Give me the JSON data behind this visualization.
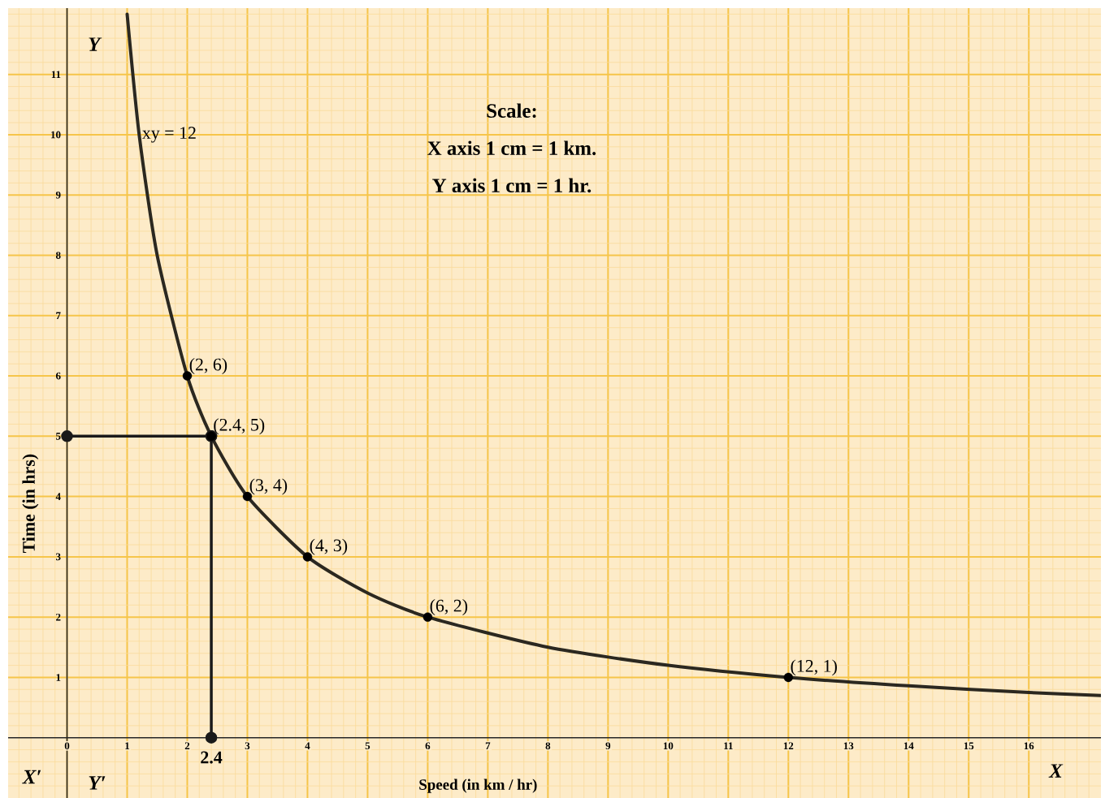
{
  "chart_data": {
    "type": "line",
    "xlabel": "Speed (in km / hr)",
    "ylabel": "Time (in hrs)",
    "xlim": [
      -0.98,
      17.2
    ],
    "ylim": [
      -1.0,
      12.1
    ],
    "xticks": [
      0,
      1,
      2,
      3,
      4,
      5,
      6,
      7,
      8,
      9,
      10,
      11,
      12,
      13,
      14,
      15,
      16,
      {
        "value": -0.8,
        "label": null
      },
      {
        "value": -0.6,
        "label": null
      },
      {
        "value": -0.4,
        "label": null
      },
      {
        "value": -0.2,
        "label": null
      },
      {
        "value": 0.2,
        "label": null
      },
      {
        "value": 0.4,
        "label": null
      },
      {
        "value": 0.6,
        "label": null
      },
      {
        "value": 0.8,
        "label": null
      },
      {
        "value": 1.2,
        "label": null
      },
      {
        "value": 1.4,
        "label": null
      },
      {
        "value": 1.6,
        "label": null
      },
      {
        "value": 1.8,
        "label": null
      },
      {
        "value": 2.2,
        "label": null
      },
      {
        "value": 2.4,
        "label": null
      },
      {
        "value": 2.6,
        "label": null
      },
      {
        "value": 2.8,
        "label": null
      },
      {
        "value": 3.2,
        "label": null
      },
      {
        "value": 3.4,
        "label": null
      },
      {
        "value": 3.6,
        "label": null
      },
      {
        "value": 3.8,
        "label": null
      },
      {
        "value": 4.2,
        "label": null
      },
      {
        "value": 4.4,
        "label": null
      },
      {
        "value": 4.6,
        "label": null
      },
      {
        "value": 4.8,
        "label": null
      },
      {
        "value": 5.2,
        "label": null
      },
      {
        "value": 5.4,
        "label": null
      },
      {
        "value": 5.6,
        "label": null
      },
      {
        "value": 5.8,
        "label": null
      },
      {
        "value": 6.2,
        "label": null
      },
      {
        "value": 6.4,
        "label": null
      },
      {
        "value": 6.6,
        "label": null
      },
      {
        "value": 6.8,
        "label": null
      },
      {
        "value": 7.2,
        "label": null
      },
      {
        "value": 7.4,
        "label": null
      },
      {
        "value": 7.6,
        "label": null
      },
      {
        "value": 7.8,
        "label": null
      },
      {
        "value": 8.2,
        "label": null
      },
      {
        "value": 8.4,
        "label": null
      },
      {
        "value": 8.6,
        "label": null
      },
      {
        "value": 8.8,
        "label": null
      },
      {
        "value": 9.2,
        "label": null
      },
      {
        "value": 9.4,
        "label": null
      },
      {
        "value": 9.6,
        "label": null
      },
      {
        "value": 9.8,
        "label": null
      },
      {
        "value": 10.2,
        "label": null
      },
      {
        "value": 10.4,
        "label": null
      },
      {
        "value": 10.6,
        "label": null
      },
      {
        "value": 10.8,
        "label": null
      },
      {
        "value": 11.2,
        "label": null
      },
      {
        "value": 11.4,
        "label": null
      },
      {
        "value": 11.6,
        "label": null
      },
      {
        "value": 11.8,
        "label": null
      },
      {
        "value": 12.2,
        "label": null
      },
      {
        "value": 12.4,
        "label": null
      },
      {
        "value": 12.6,
        "label": null
      },
      {
        "value": 12.8,
        "label": null
      },
      {
        "value": 13.2,
        "label": null
      },
      {
        "value": 13.4,
        "label": null
      },
      {
        "value": 13.6,
        "label": null
      },
      {
        "value": 13.8,
        "label": null
      },
      {
        "value": 14.2,
        "label": null
      },
      {
        "value": 14.4,
        "label": null
      },
      {
        "value": 14.6,
        "label": null
      },
      {
        "value": 14.8,
        "label": null
      },
      {
        "value": 15.2,
        "label": null
      },
      {
        "value": 15.4,
        "label": null
      },
      {
        "value": 15.6,
        "label": null
      },
      {
        "value": 15.8,
        "label": null
      },
      {
        "value": 16.2,
        "label": null
      },
      {
        "value": 16.4,
        "label": null
      },
      {
        "value": 16.6,
        "label": null
      },
      {
        "value": 16.8,
        "label": null
      },
      {
        "value": 17,
        "label": null
      }
    ],
    "yticks": [
      1,
      2,
      3,
      4,
      5,
      6,
      7,
      8,
      9,
      10,
      11,
      {
        "value": -0.8,
        "label": null
      },
      {
        "value": -0.6,
        "label": null
      },
      {
        "value": -0.4,
        "label": null
      },
      {
        "value": -0.2,
        "label": null
      },
      {
        "value": 0.2,
        "label": null
      },
      {
        "value": 0.4,
        "label": null
      },
      {
        "value": 0.6,
        "label": null
      },
      {
        "value": 0.8,
        "label": null
      },
      {
        "value": 1.2,
        "label": null
      },
      {
        "value": 1.4,
        "label": null
      },
      {
        "value": 1.6,
        "label": null
      },
      {
        "value": 1.8,
        "label": null
      },
      {
        "value": 2.2,
        "label": null
      },
      {
        "value": 2.4,
        "label": null
      },
      {
        "value": 2.6,
        "label": null
      },
      {
        "value": 2.8,
        "label": null
      },
      {
        "value": 3.2,
        "label": null
      },
      {
        "value": 3.4,
        "label": null
      },
      {
        "value": 3.6,
        "label": null
      },
      {
        "value": 3.8,
        "label": null
      },
      {
        "value": 4.2,
        "label": null
      },
      {
        "value": 4.4,
        "label": null
      },
      {
        "value": 4.6,
        "label": null
      },
      {
        "value": 4.8,
        "label": null
      },
      {
        "value": 5.2,
        "label": null
      },
      {
        "value": 5.4,
        "label": null
      },
      {
        "value": 5.6,
        "label": null
      },
      {
        "value": 5.8,
        "label": null
      },
      {
        "value": 6.2,
        "label": null
      },
      {
        "value": 6.4,
        "label": null
      },
      {
        "value": 6.6,
        "label": null
      },
      {
        "value": 6.8,
        "label": null
      },
      {
        "value": 7.2,
        "label": null
      },
      {
        "value": 7.4,
        "label": null
      },
      {
        "value": 7.6,
        "label": null
      },
      {
        "value": 7.8,
        "label": null
      },
      {
        "value": 8.2,
        "label": null
      },
      {
        "value": 8.4,
        "label": null
      },
      {
        "value": 8.6,
        "label": null
      },
      {
        "value": 8.8,
        "label": null
      },
      {
        "value": 9.2,
        "label": null
      },
      {
        "value": 9.4,
        "label": null
      },
      {
        "value": 9.6,
        "label": null
      },
      {
        "value": 9.8,
        "label": null
      },
      {
        "value": 10.2,
        "label": null
      },
      {
        "value": 10.4,
        "label": null
      },
      {
        "value": 10.6,
        "label": null
      },
      {
        "value": 10.8,
        "label": null
      },
      {
        "value": 11.2,
        "label": null
      },
      {
        "value": 11.4,
        "label": null
      },
      {
        "value": 11.6,
        "label": null
      },
      {
        "value": 11.8,
        "label": null
      },
      {
        "value": 12,
        "label": null
      }
    ],
    "grid": true,
    "series": [
      {
        "name": "xy = 12",
        "color": "#2b2820",
        "marker": "none",
        "x": [
          1,
          1.2,
          1.5,
          2,
          2.4,
          3,
          4,
          5,
          6,
          8,
          10,
          12,
          14,
          16,
          17.2
        ],
        "values": [
          12,
          10,
          8,
          6,
          5,
          4,
          3,
          2.4,
          2,
          1.5,
          1.2,
          1,
          0.86,
          0.75,
          0.7
        ]
      },
      {
        "color": "#1a1a1a",
        "marker": "circle",
        "x": [
          0,
          2.4
        ],
        "values": [
          5,
          5
        ]
      },
      {
        "color": "#1a1a1a",
        "marker": "circle",
        "x": [
          2.4,
          2.4
        ],
        "values": [
          0,
          5
        ]
      },
      {
        "type": "scatter",
        "color": "#000000",
        "marker": "circle",
        "x": [
          2,
          2.4,
          3,
          4,
          6,
          12
        ],
        "values": [
          6,
          5,
          4,
          3,
          2,
          1
        ]
      }
    ],
    "annotations": [
      {
        "text": "(2, 6)",
        "x": 2,
        "y": 6
      },
      {
        "text": "(2.4, 5)",
        "x": 2.4,
        "y": 5
      },
      {
        "text": "(3, 4)",
        "x": 3,
        "y": 4
      },
      {
        "text": "(4, 3)",
        "x": 4,
        "y": 3
      },
      {
        "text": "(6, 2)",
        "x": 6,
        "y": 2
      },
      {
        "text": "(12, 1)",
        "x": 12,
        "y": 1
      },
      {
        "text": "2.4",
        "x": 2.4,
        "y": 0
      },
      "Scale:",
      "X axis 1 cm = 1 km.",
      "Y axis 1 cm = 1 hr.",
      "X′",
      "X",
      "Y",
      "Y′"
    ]
  }
}
